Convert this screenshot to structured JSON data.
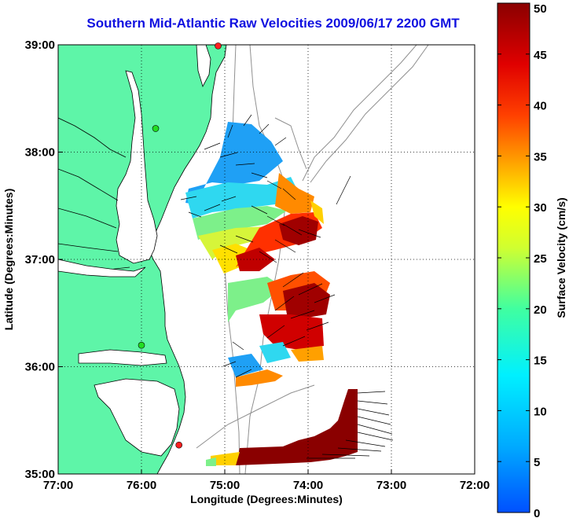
{
  "title": "Southern Mid-Atlantic Raw Velocities 2009/06/17 2200 GMT",
  "xaxis": {
    "label": "Longitude (Degrees:Minutes)",
    "ticks": [
      "77:00",
      "76:00",
      "75:00",
      "74:00",
      "73:00",
      "72:00"
    ]
  },
  "yaxis": {
    "label": "Latitude (Degrees:Minutes)",
    "ticks": [
      "39:00",
      "38:00",
      "37:00",
      "36:00",
      "35:00"
    ]
  },
  "colorbar": {
    "label": "Surface Velocity (cm/s)",
    "ticks": [
      "0",
      "5",
      "10",
      "15",
      "20",
      "25",
      "30",
      "35",
      "40",
      "45",
      "50"
    ],
    "range": [
      0,
      50
    ]
  },
  "map": {
    "lon_range": [
      -77,
      -72
    ],
    "lat_range": [
      35,
      39
    ],
    "land_color": "#5ef5a8",
    "coast_color": "#000000",
    "bathymetry_color": "#909090",
    "grid_style": "dotted",
    "stations": [
      {
        "lon": -75.08,
        "lat": 38.99,
        "color": "#ff2020"
      },
      {
        "lon": -75.83,
        "lat": 38.22,
        "color": "#22dd22"
      },
      {
        "lon": -76.0,
        "lat": 36.2,
        "color": "#22dd22"
      },
      {
        "lon": -75.55,
        "lat": 35.27,
        "color": "#ff2020"
      }
    ]
  }
}
